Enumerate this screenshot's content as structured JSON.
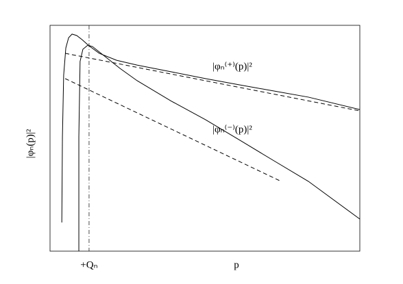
{
  "chart_data": {
    "type": "line",
    "y_label": "|φₙ(p)|²",
    "x_label": "p",
    "xlim": [
      0,
      100
    ],
    "ylim": [
      0,
      100
    ],
    "marker": {
      "x": 12.6,
      "label": "+Qₙ"
    },
    "series": [
      {
        "name": "|φₙ⁽⁺⁾(p)|²",
        "color": "#000000",
        "style": "solid",
        "x": [
          3.8,
          4.0,
          4.4,
          5.1,
          6.0,
          7.1,
          8.6,
          10.4,
          12.6,
          15.9,
          21.5,
          28.1,
          39.2,
          50.2,
          61.3,
          72.3,
          83.4,
          100
        ],
        "values": [
          12.7,
          50.6,
          77.9,
          90,
          94.5,
          96.1,
          95.5,
          93.6,
          90.9,
          87.6,
          84.5,
          82.4,
          79.4,
          76.4,
          73.6,
          70.9,
          68.2,
          62.7
        ]
      },
      {
        "name": "|φₙ⁽⁻⁾(p)|²",
        "color": "#000000",
        "style": "solid",
        "x": [
          9.3,
          9.3,
          9.7,
          10.6,
          12.2,
          13.7,
          17,
          22.6,
          28.1,
          39.2,
          50.2,
          61.3,
          72.3,
          83.4,
          100
        ],
        "values": [
          0,
          50.6,
          84,
          89.4,
          91.2,
          90.6,
          87,
          80.9,
          75.5,
          66.4,
          58.2,
          49.1,
          40,
          30.9,
          14.2
        ]
      },
      {
        "color": "#000000",
        "style": "dashed",
        "x": [
          4.9,
          100
        ],
        "values": [
          87.6,
          62.1
        ]
      },
      {
        "color": "#000000",
        "style": "dashed",
        "x": [
          4.9,
          74.6
        ],
        "values": [
          76.4,
          30.9
        ]
      }
    ]
  }
}
